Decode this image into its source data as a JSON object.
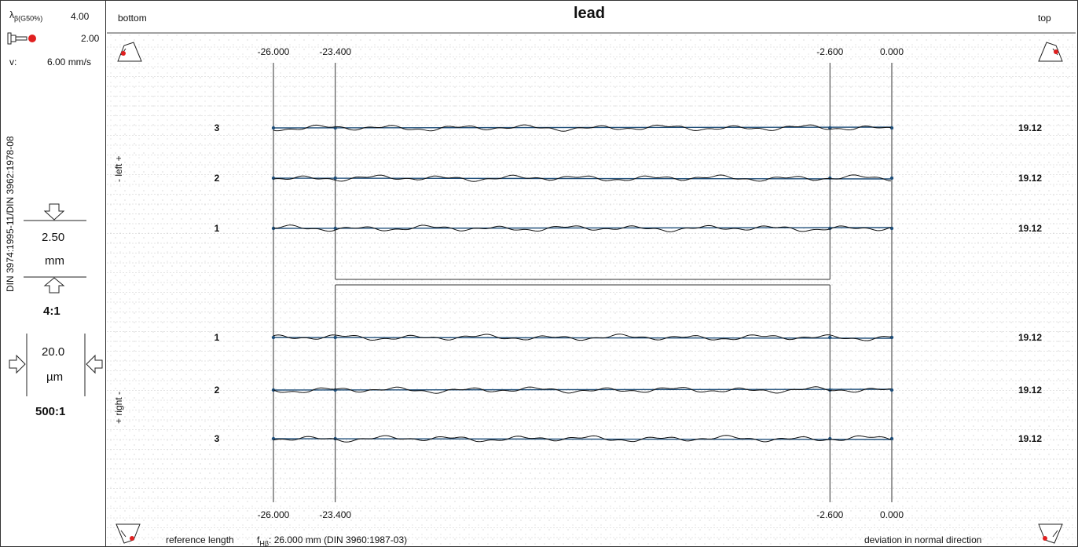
{
  "sidebar": {
    "lambda_label": "λ",
    "lambda_sub": "β(G50%)",
    "lambda_value": "4.00",
    "probe_value": "2.00",
    "speed_label": "v:",
    "speed_value": "6.00 mm/s",
    "standard": "DIN 3974:1995-11/DIN 3962:1978-08",
    "x_scale_value": "2.50",
    "x_scale_unit": "mm",
    "x_ratio": "4:1",
    "y_scale_value": "20.0",
    "y_scale_unit": "µm",
    "y_ratio": "500:1"
  },
  "header": {
    "left": "bottom",
    "title": "lead",
    "right": "top"
  },
  "footer": {
    "reference_label": "reference length",
    "f_label": "f",
    "f_sub": "Hβ",
    "f_text": ": 26.000 mm (DIN 3960:1987-03)",
    "deviation": "deviation in normal direction"
  },
  "colors": {
    "profile": "#111111",
    "reference": "#1f4e79",
    "grid": "#bbbbbb",
    "accent": "#e02020"
  },
  "chart_data": {
    "type": "line",
    "title": "lead",
    "x_ticks": [
      -26.0,
      -23.4,
      -2.6,
      0.0
    ],
    "x_tick_labels": [
      "-26.000",
      "-23.400",
      "-2.600",
      "0.000"
    ],
    "x_range": [
      -26.0,
      0.0
    ],
    "evaluation_range": [
      -23.4,
      -2.6
    ],
    "sections": [
      {
        "side_label": "- left +",
        "teeth": [
          {
            "tooth": "3",
            "value": "19.12"
          },
          {
            "tooth": "2",
            "value": "19.12"
          },
          {
            "tooth": "1",
            "value": "19.12"
          }
        ]
      },
      {
        "side_label": "+ right -",
        "teeth": [
          {
            "tooth": "1",
            "value": "19.12"
          },
          {
            "tooth": "2",
            "value": "19.12"
          },
          {
            "tooth": "3",
            "value": "19.12"
          }
        ]
      }
    ],
    "grid": true
  }
}
